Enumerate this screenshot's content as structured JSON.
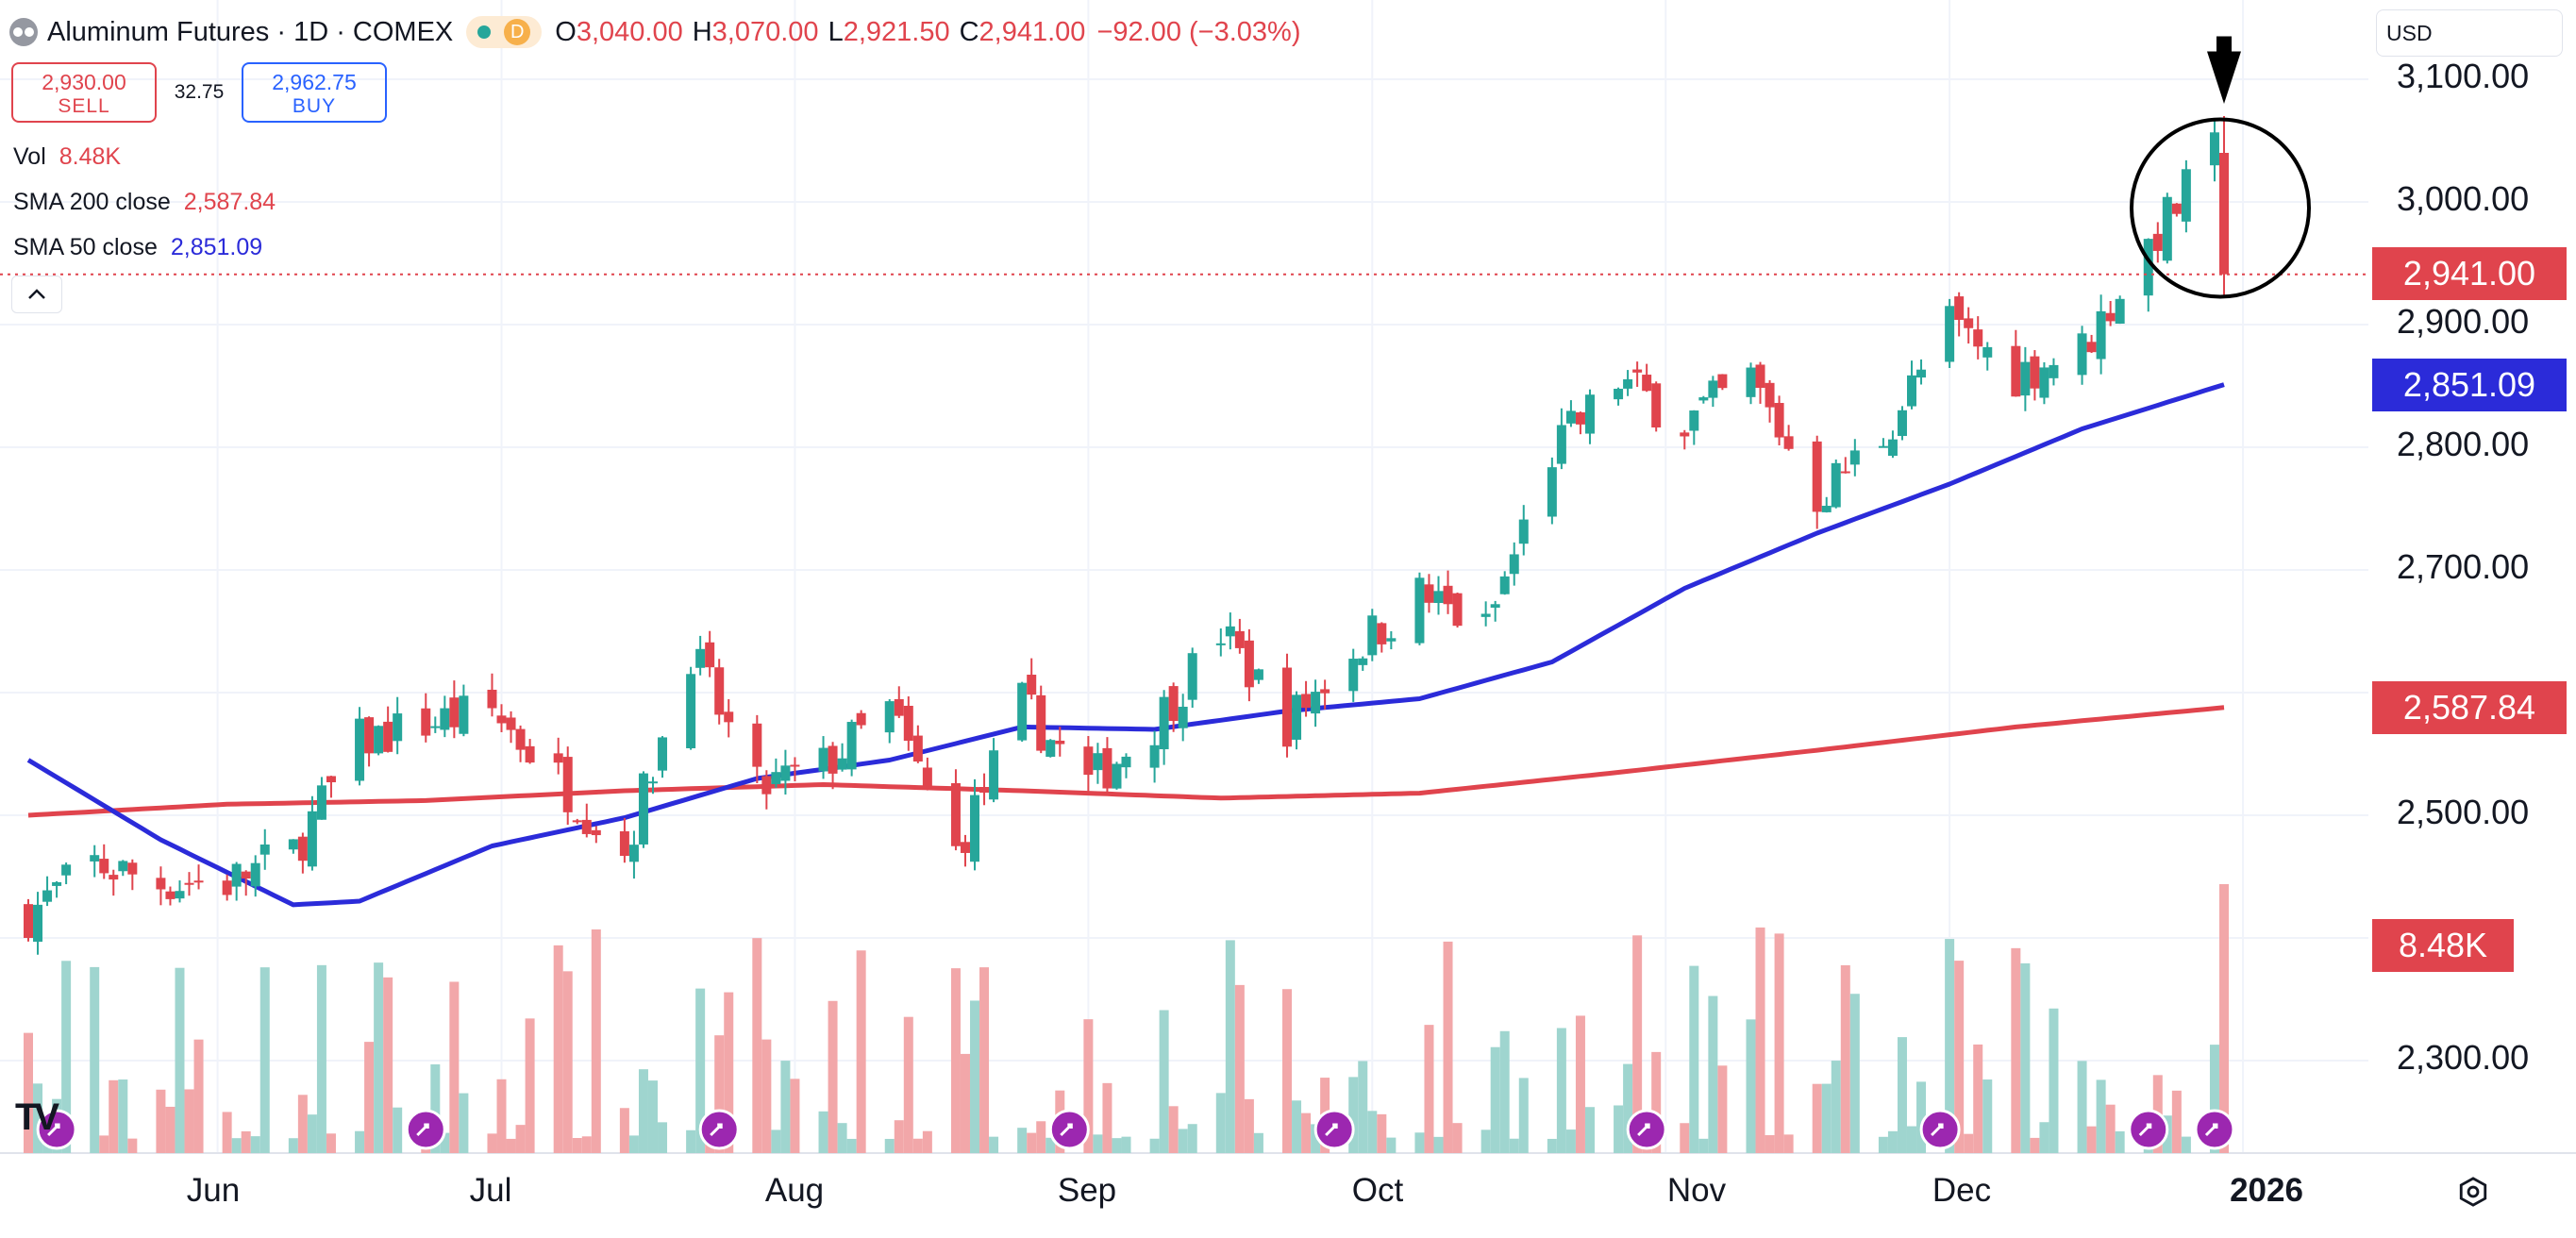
{
  "header": {
    "symbol_title": "Aluminum Futures · 1D · COMEX",
    "interval_badge": "D",
    "o_label": "O",
    "o_value": "3,040.00",
    "h_label": "H",
    "h_value": "3,070.00",
    "l_label": "L",
    "l_value": "2,921.50",
    "c_label": "C",
    "c_value": "2,941.00",
    "change": "−92.00 (−3.03%)"
  },
  "trade": {
    "sell_price": "2,930.00",
    "sell_label": "SELL",
    "spread": "32.75",
    "buy_price": "2,962.75",
    "buy_label": "BUY"
  },
  "indicators": {
    "vol_label": "Vol",
    "vol_value": "8.48K",
    "sma200_label": "SMA 200 close",
    "sma200_value": "2,587.84",
    "sma50_label": "SMA 50 close",
    "sma50_value": "2,851.09"
  },
  "currency": "USD",
  "price_axis": {
    "ticks": [
      "3,100.00",
      "3,000.00",
      "2,900.00",
      "2,800.00",
      "2,700.00",
      "2,500.00",
      "2,300.00"
    ],
    "last_price_badge": "2,941.00",
    "sma50_badge": "2,851.09",
    "sma200_badge": "2,587.84",
    "volume_badge": "8.48K"
  },
  "time_axis": [
    "Jun",
    "Jul",
    "Aug",
    "Sep",
    "Oct",
    "Nov",
    "Dec",
    "2026"
  ],
  "colors": {
    "up": "#26a69a",
    "down": "#e0444d",
    "up_volume": "#9fd5cf",
    "down_volume": "#f2a7a9",
    "sma50": "#2b2bd9",
    "sma200": "#e0444d",
    "event_icon": "#9c27b0"
  },
  "icons": [
    "symbol-logo-icon",
    "chevron-up-icon",
    "chevron-down-icon",
    "settings-gear-icon",
    "tradingview-logo-icon",
    "dividend-event-icon",
    "annotation-arrow-icon"
  ],
  "chart_data": {
    "type": "candlestick",
    "title": "Aluminum Futures · 1D · COMEX",
    "x_range": [
      "2025-05-12",
      "2025-12-30"
    ],
    "ylim": [
      2250,
      3150
    ],
    "y_ticks": [
      2300,
      2400,
      2500,
      2600,
      2700,
      2800,
      2900,
      3000,
      3100
    ],
    "grid": true,
    "log_scale": false,
    "last_close": 2941.0,
    "last_bar": {
      "open": 3040.0,
      "high": 3070.0,
      "low": 2921.5,
      "close": 2941.0
    },
    "sma_200_last": 2587.84,
    "sma_50_last": 2851.09,
    "volume_last": "8.48K",
    "anchors": [
      {
        "date": "2025-05-12",
        "price": 2420
      },
      {
        "date": "2025-05-19",
        "price": 2460
      },
      {
        "date": "2025-05-26",
        "price": 2445
      },
      {
        "date": "2025-06-02",
        "price": 2445
      },
      {
        "date": "2025-06-09",
        "price": 2470
      },
      {
        "date": "2025-06-16",
        "price": 2560
      },
      {
        "date": "2025-06-23",
        "price": 2575
      },
      {
        "date": "2025-06-30",
        "price": 2585
      },
      {
        "date": "2025-07-07",
        "price": 2530
      },
      {
        "date": "2025-07-14",
        "price": 2470
      },
      {
        "date": "2025-07-21",
        "price": 2635
      },
      {
        "date": "2025-07-28",
        "price": 2520
      },
      {
        "date": "2025-08-04",
        "price": 2540
      },
      {
        "date": "2025-08-11",
        "price": 2585
      },
      {
        "date": "2025-08-18",
        "price": 2470
      },
      {
        "date": "2025-08-25",
        "price": 2590
      },
      {
        "date": "2025-09-01",
        "price": 2525
      },
      {
        "date": "2025-09-08",
        "price": 2575
      },
      {
        "date": "2025-09-15",
        "price": 2650
      },
      {
        "date": "2025-09-22",
        "price": 2575
      },
      {
        "date": "2025-09-29",
        "price": 2635
      },
      {
        "date": "2025-10-06",
        "price": 2680
      },
      {
        "date": "2025-10-13",
        "price": 2650
      },
      {
        "date": "2025-10-20",
        "price": 2795
      },
      {
        "date": "2025-10-27",
        "price": 2855
      },
      {
        "date": "2025-11-03",
        "price": 2820
      },
      {
        "date": "2025-11-10",
        "price": 2855
      },
      {
        "date": "2025-11-17",
        "price": 2760
      },
      {
        "date": "2025-11-24",
        "price": 2810
      },
      {
        "date": "2025-12-01",
        "price": 2900
      },
      {
        "date": "2025-12-08",
        "price": 2860
      },
      {
        "date": "2025-12-15",
        "price": 2880
      },
      {
        "date": "2025-12-22",
        "price": 2965
      },
      {
        "date": "2025-12-29",
        "price": 3040
      },
      {
        "date": "2025-12-30",
        "price": 2941
      }
    ],
    "sma_50": [
      {
        "date": "2025-05-12",
        "value": 2545
      },
      {
        "date": "2025-05-26",
        "value": 2480
      },
      {
        "date": "2025-06-09",
        "value": 2427
      },
      {
        "date": "2025-06-16",
        "value": 2430
      },
      {
        "date": "2025-06-30",
        "value": 2475
      },
      {
        "date": "2025-07-14",
        "value": 2498
      },
      {
        "date": "2025-07-28",
        "value": 2530
      },
      {
        "date": "2025-08-11",
        "value": 2545
      },
      {
        "date": "2025-08-25",
        "value": 2572
      },
      {
        "date": "2025-09-08",
        "value": 2570
      },
      {
        "date": "2025-09-22",
        "value": 2585
      },
      {
        "date": "2025-10-06",
        "value": 2595
      },
      {
        "date": "2025-10-20",
        "value": 2625
      },
      {
        "date": "2025-11-03",
        "value": 2685
      },
      {
        "date": "2025-11-17",
        "value": 2730
      },
      {
        "date": "2025-12-01",
        "value": 2770
      },
      {
        "date": "2025-12-15",
        "value": 2815
      },
      {
        "date": "2025-12-30",
        "value": 2851.09
      }
    ],
    "sma_200": [
      {
        "date": "2025-05-12",
        "value": 2500
      },
      {
        "date": "2025-06-02",
        "value": 2509
      },
      {
        "date": "2025-06-23",
        "value": 2512
      },
      {
        "date": "2025-07-14",
        "value": 2520
      },
      {
        "date": "2025-08-04",
        "value": 2525
      },
      {
        "date": "2025-08-25",
        "value": 2520
      },
      {
        "date": "2025-09-15",
        "value": 2514
      },
      {
        "date": "2025-10-06",
        "value": 2518
      },
      {
        "date": "2025-10-27",
        "value": 2535
      },
      {
        "date": "2025-11-17",
        "value": 2553
      },
      {
        "date": "2025-12-08",
        "value": 2572
      },
      {
        "date": "2025-12-30",
        "value": 2587.84
      }
    ]
  }
}
